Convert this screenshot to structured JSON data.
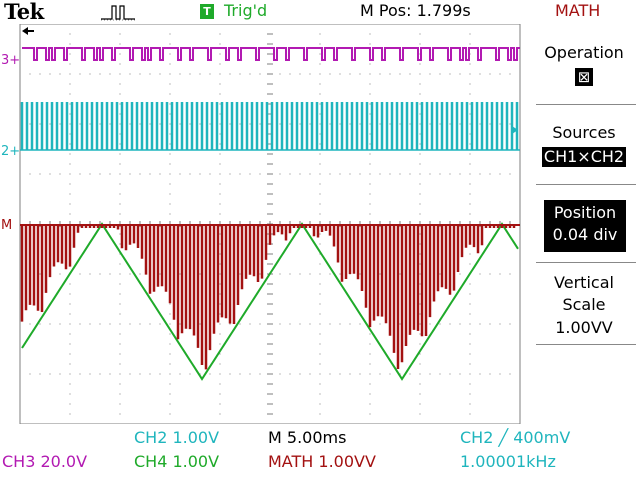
{
  "header": {
    "brand": "Tek",
    "trigger_badge": "T",
    "trigger_status": "Trig'd",
    "m_pos": "M Pos: 1.799s",
    "menu_title": "MATH"
  },
  "side_menu": {
    "operation_label": "Operation",
    "operation_value_icon": "multiply-icon",
    "operation_symbol": "⊠",
    "sources_label": "Sources",
    "sources_value": "CH1×CH2",
    "position_label": "Position",
    "position_value": "0.04 div",
    "vertical_label": "Vertical",
    "scale_label": "Scale",
    "scale_value": "1.00VV"
  },
  "markers": {
    "ch3": "3+",
    "ch2": "2+",
    "math": "M"
  },
  "bottom": {
    "ch2_scale": "CH2  1.00V",
    "time_base": "M 5.00ms",
    "trigger_info": "CH2 ╱ 400mV",
    "ch3_scale": "CH3  20.0V",
    "ch4_scale": "CH4  1.00V",
    "math_scale": "MATH 1.00VV",
    "frequency": "1.00001kHz"
  },
  "colors": {
    "ch2": "#1fb5bd",
    "ch3": "#b21ab2",
    "ch4": "#1faa2a",
    "math": "#a31111",
    "grid": "#7f7f7f"
  }
}
